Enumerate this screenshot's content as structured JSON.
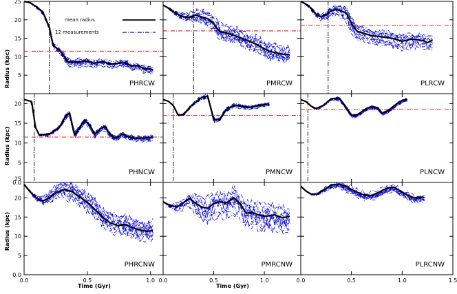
{
  "chart_data": {
    "type": "line",
    "xlabel": "Time (Gyr)",
    "ylabel": "Radius (kpc)",
    "xlim": [
      0,
      1.5
    ],
    "ylim": [
      0,
      25
    ],
    "x_ticks": [
      "0.0",
      "0.5",
      "1.0",
      "0.0",
      "0.5",
      "1.0",
      "0.0",
      "0.5",
      "1.0",
      "1.5"
    ],
    "y_ticks": [
      "0.0",
      "5",
      "10",
      "15",
      "20",
      "25"
    ],
    "y_ticks_top": [
      "5",
      "10",
      "15",
      "20",
      "25"
    ],
    "y_ticks_mid": [
      "0.0",
      "5",
      "10",
      "15",
      "20"
    ],
    "legend": {
      "mean": "mean radius",
      "meas": "12 measurements"
    },
    "colors": {
      "mean": "#000000",
      "meas": "#0000dd",
      "ref": "#dd0000",
      "marker": "#000000"
    },
    "panels": [
      {
        "name": "PHRCW",
        "ref_radius": 11.5,
        "marker_time": 0.2,
        "mean": [
          [
            0,
            25
          ],
          [
            0.05,
            24.6
          ],
          [
            0.1,
            23.5
          ],
          [
            0.15,
            22
          ],
          [
            0.2,
            18
          ],
          [
            0.23,
            13
          ],
          [
            0.28,
            11.8
          ],
          [
            0.32,
            10
          ],
          [
            0.35,
            8.5
          ],
          [
            0.42,
            8.5
          ],
          [
            0.5,
            8.8
          ],
          [
            0.55,
            8.2
          ],
          [
            0.62,
            8.7
          ],
          [
            0.68,
            8.0
          ],
          [
            0.74,
            8.2
          ],
          [
            0.8,
            8.4
          ],
          [
            0.85,
            7.5
          ],
          [
            0.9,
            7.6
          ],
          [
            0.95,
            6.8
          ],
          [
            1.02,
            6.5
          ]
        ],
        "spread": 1.2
      },
      {
        "name": "PMRCW",
        "ref_radius": 17,
        "marker_time": 0.3,
        "mean": [
          [
            0,
            24
          ],
          [
            0.05,
            23.2
          ],
          [
            0.1,
            22.2
          ],
          [
            0.18,
            21
          ],
          [
            0.25,
            20.6
          ],
          [
            0.32,
            21.3
          ],
          [
            0.38,
            20.8
          ],
          [
            0.45,
            20.2
          ],
          [
            0.5,
            19
          ],
          [
            0.55,
            17
          ],
          [
            0.62,
            16.4
          ],
          [
            0.7,
            15.8
          ],
          [
            0.78,
            15
          ],
          [
            0.85,
            14.2
          ],
          [
            0.92,
            13.4
          ],
          [
            0.98,
            12.4
          ],
          [
            1.05,
            11.5
          ],
          [
            1.12,
            11
          ],
          [
            1.2,
            10.6
          ],
          [
            1.25,
            10.6
          ]
        ],
        "spread": 2.6
      },
      {
        "name": "PLRCW",
        "ref_radius": 18.5,
        "marker_time": 0.27,
        "mean": [
          [
            0,
            25
          ],
          [
            0.05,
            24.3
          ],
          [
            0.1,
            23.2
          ],
          [
            0.15,
            21.5
          ],
          [
            0.2,
            20.8
          ],
          [
            0.25,
            21.3
          ],
          [
            0.3,
            22.5
          ],
          [
            0.35,
            22.8
          ],
          [
            0.4,
            22.4
          ],
          [
            0.45,
            21.8
          ],
          [
            0.5,
            19
          ],
          [
            0.55,
            17
          ],
          [
            0.6,
            16.5
          ],
          [
            0.7,
            15.7
          ],
          [
            0.8,
            15.4
          ],
          [
            0.9,
            15
          ],
          [
            1.0,
            14.2
          ],
          [
            1.1,
            14.8
          ],
          [
            1.2,
            14.4
          ],
          [
            1.25,
            13.8
          ],
          [
            1.3,
            14.5
          ]
        ],
        "spread": 2.0
      },
      {
        "name": "PHNCW",
        "ref_radius": 11.5,
        "marker_time": 0.08,
        "mean": [
          [
            0,
            21
          ],
          [
            0.06,
            20.5
          ],
          [
            0.09,
            14
          ],
          [
            0.12,
            12
          ],
          [
            0.2,
            12.2
          ],
          [
            0.28,
            14
          ],
          [
            0.33,
            16.8
          ],
          [
            0.36,
            17.6
          ],
          [
            0.4,
            12
          ],
          [
            0.44,
            14
          ],
          [
            0.48,
            15.8
          ],
          [
            0.52,
            14.5
          ],
          [
            0.56,
            12.2
          ],
          [
            0.6,
            13.5
          ],
          [
            0.64,
            14.2
          ],
          [
            0.68,
            12.2
          ],
          [
            0.72,
            11.2
          ],
          [
            0.78,
            12.2
          ],
          [
            0.82,
            11.6
          ],
          [
            0.88,
            11.2
          ],
          [
            0.95,
            11.2
          ],
          [
            1.02,
            11.5
          ]
        ],
        "spread": 0.8
      },
      {
        "name": "PMNCW",
        "ref_radius": 17,
        "marker_time": 0.1,
        "mean": [
          [
            0,
            21
          ],
          [
            0.05,
            20.6
          ],
          [
            0.1,
            19.5
          ],
          [
            0.15,
            17
          ],
          [
            0.2,
            17.2
          ],
          [
            0.28,
            19.5
          ],
          [
            0.38,
            21.5
          ],
          [
            0.44,
            21.9
          ],
          [
            0.48,
            18
          ],
          [
            0.5,
            15.8
          ],
          [
            0.56,
            16
          ],
          [
            0.62,
            18.4
          ],
          [
            0.7,
            19.6
          ],
          [
            0.78,
            19.3
          ],
          [
            0.85,
            19
          ],
          [
            0.95,
            19.5
          ],
          [
            1.02,
            19.8
          ],
          [
            1.05,
            19.8
          ]
        ],
        "spread": 0.6
      },
      {
        "name": "PLNCW",
        "ref_radius": 18.5,
        "marker_time": 0.07,
        "mean": [
          [
            0,
            21
          ],
          [
            0.05,
            20.5
          ],
          [
            0.1,
            19.4
          ],
          [
            0.15,
            18.7
          ],
          [
            0.22,
            19.5
          ],
          [
            0.3,
            21.2
          ],
          [
            0.38,
            21.4
          ],
          [
            0.45,
            19
          ],
          [
            0.5,
            17
          ],
          [
            0.56,
            17.2
          ],
          [
            0.64,
            18.6
          ],
          [
            0.7,
            19.3
          ],
          [
            0.76,
            18.9
          ],
          [
            0.8,
            17.6
          ],
          [
            0.86,
            18.2
          ],
          [
            0.95,
            20
          ],
          [
            1.0,
            20.8
          ],
          [
            1.05,
            21.1
          ]
        ],
        "spread": 0.6
      },
      {
        "name": "PHRCNW",
        "ref_radius": null,
        "marker_time": null,
        "mean": [
          [
            0,
            23.5
          ],
          [
            0.05,
            21.5
          ],
          [
            0.1,
            19.8
          ],
          [
            0.15,
            19.2
          ],
          [
            0.2,
            20
          ],
          [
            0.26,
            21.5
          ],
          [
            0.32,
            22.2
          ],
          [
            0.38,
            21.6
          ],
          [
            0.45,
            20
          ],
          [
            0.5,
            18.8
          ],
          [
            0.56,
            17
          ],
          [
            0.62,
            15
          ],
          [
            0.68,
            13.5
          ],
          [
            0.74,
            12.8
          ],
          [
            0.8,
            13
          ],
          [
            0.86,
            12.2
          ],
          [
            0.92,
            11.6
          ],
          [
            0.98,
            11.3
          ],
          [
            1.02,
            11.6
          ]
        ],
        "spread": 3.2
      },
      {
        "name": "PMRCNW",
        "ref_radius": null,
        "marker_time": null,
        "mean": [
          [
            0,
            19
          ],
          [
            0.05,
            18.2
          ],
          [
            0.1,
            17.8
          ],
          [
            0.15,
            17.8
          ],
          [
            0.2,
            18.7
          ],
          [
            0.26,
            19.8
          ],
          [
            0.32,
            18.6
          ],
          [
            0.38,
            17.6
          ],
          [
            0.44,
            17.3
          ],
          [
            0.5,
            18.5
          ],
          [
            0.56,
            19
          ],
          [
            0.62,
            18.6
          ],
          [
            0.7,
            20
          ],
          [
            0.76,
            18.5
          ],
          [
            0.82,
            16
          ],
          [
            0.88,
            16.2
          ],
          [
            0.95,
            15.5
          ],
          [
            1.02,
            15.2
          ],
          [
            1.1,
            15.6
          ],
          [
            1.18,
            14.8
          ],
          [
            1.25,
            15.2
          ]
        ],
        "spread": 3.6
      },
      {
        "name": "PLRCNW",
        "ref_radius": null,
        "marker_time": null,
        "mean": [
          [
            0,
            23
          ],
          [
            0.05,
            21.8
          ],
          [
            0.1,
            21
          ],
          [
            0.16,
            21
          ],
          [
            0.22,
            22
          ],
          [
            0.3,
            23.3
          ],
          [
            0.38,
            23.6
          ],
          [
            0.46,
            22.8
          ],
          [
            0.54,
            21.6
          ],
          [
            0.62,
            20.8
          ],
          [
            0.7,
            20.6
          ],
          [
            0.78,
            21.6
          ],
          [
            0.86,
            22.6
          ],
          [
            0.92,
            22.8
          ],
          [
            0.98,
            21.8
          ],
          [
            1.06,
            20.6
          ],
          [
            1.12,
            20
          ],
          [
            1.18,
            20.2
          ],
          [
            1.22,
            20.1
          ]
        ],
        "spread": 1.2
      }
    ]
  }
}
